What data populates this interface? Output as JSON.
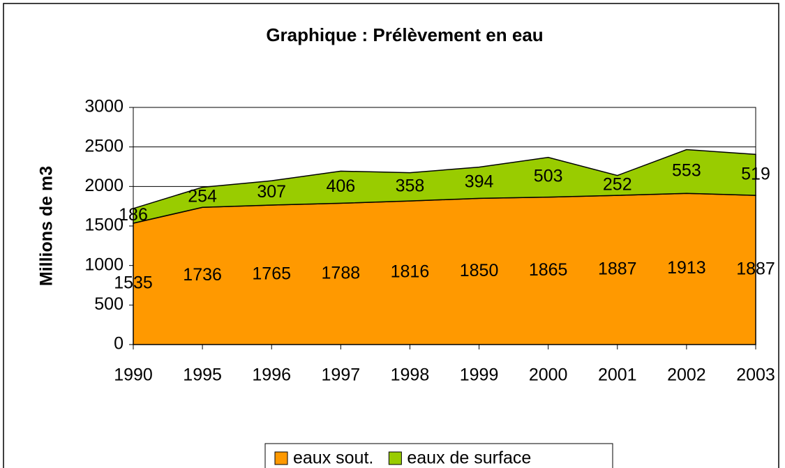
{
  "chart_data": {
    "type": "stacked_area",
    "title": "Graphique : Prélèvement en eau",
    "ylabel": "Millions de m3",
    "categories": [
      "1990",
      "1995",
      "1996",
      "1997",
      "1998",
      "1999",
      "2000",
      "2001",
      "2002",
      "2003"
    ],
    "series": [
      {
        "name": "eaux sout.",
        "color": "#ff9900",
        "values": [
          1535,
          1736,
          1765,
          1788,
          1816,
          1850,
          1865,
          1887,
          1913,
          1887
        ]
      },
      {
        "name": "eaux de surface",
        "color": "#99cc00",
        "values": [
          186,
          254,
          307,
          406,
          358,
          394,
          503,
          252,
          553,
          519
        ]
      }
    ],
    "ylim": [
      0,
      3000
    ],
    "yticks": [
      0,
      500,
      1000,
      1500,
      2000,
      2500,
      3000
    ],
    "grid": true,
    "legend": "bottom"
  }
}
